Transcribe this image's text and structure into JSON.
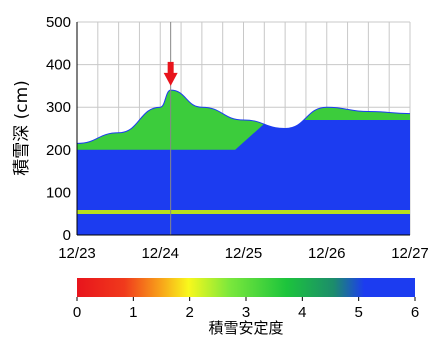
{
  "chart_data": {
    "type": "heatmap",
    "title": "",
    "ylabel": "積雪深 (cm)",
    "xlabel": "",
    "ylim": [
      0,
      500
    ],
    "yticks": [
      0,
      100,
      200,
      300,
      400,
      500
    ],
    "xticks": [
      "12/23",
      "12/24",
      "12/25",
      "12/26",
      "12/27"
    ],
    "xlim": [
      "12/23",
      "12/27"
    ],
    "grid": true,
    "colorbar": {
      "label": "積雪安定度",
      "range": [
        0,
        6
      ],
      "ticks": [
        0,
        1,
        2,
        3,
        4,
        5,
        6
      ],
      "colors": [
        "#e8141c",
        "#f8a51a",
        "#f8f81c",
        "#7ce83c",
        "#1cc43c",
        "#1c8c6c",
        "#1c3cf0",
        "#1c3cf0"
      ]
    },
    "snow_depth": {
      "x": [
        "12/23 00:00",
        "12/23 12:00",
        "12/24 00:00",
        "12/24 03:00",
        "12/24 12:00",
        "12/25 00:00",
        "12/25 12:00",
        "12/26 00:00",
        "12/26 12:00",
        "12/27 00:00"
      ],
      "depth_cm": [
        215,
        240,
        300,
        340,
        300,
        270,
        250,
        300,
        290,
        285
      ]
    },
    "marker": {
      "x": "12/24 03:00",
      "depth_cm": 350,
      "color": "#e8141c"
    }
  }
}
